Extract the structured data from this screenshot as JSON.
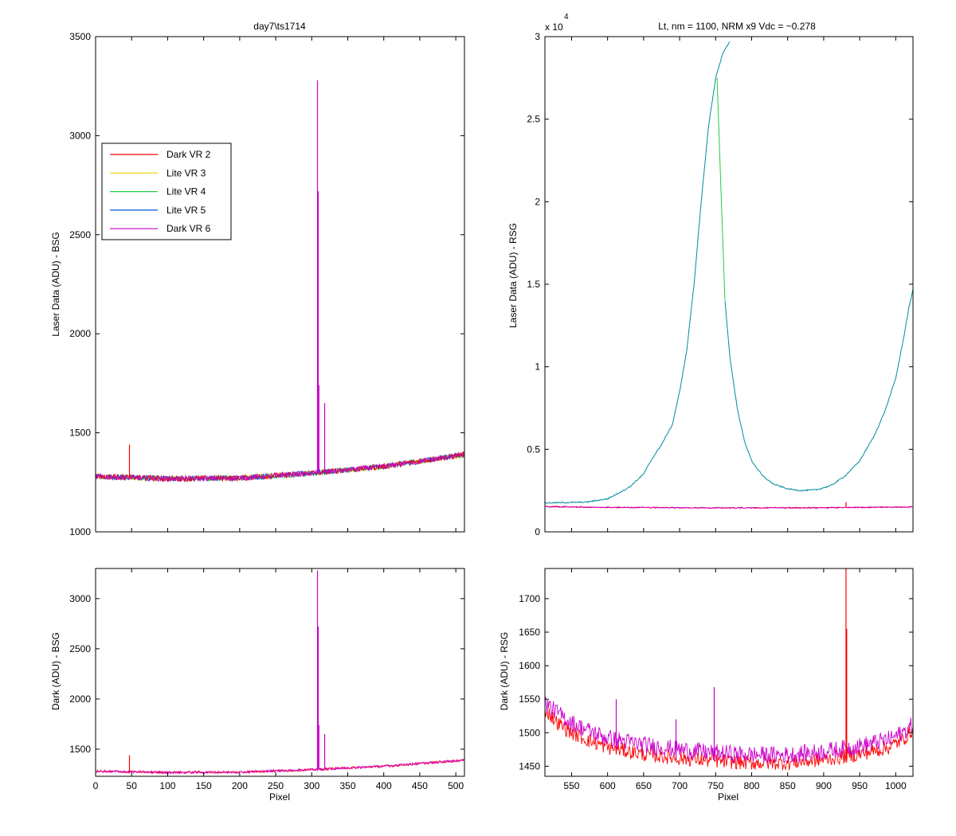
{
  "figure": {
    "background": "#ffffff",
    "series_colors": {
      "Dark VR 2": "#ff0000",
      "Lite VR 3": "#e6d200",
      "Lite VR 4": "#22cc44",
      "Lite VR 5": "#0055dd",
      "Dark VR 6": "#cc00cc"
    },
    "overlap_color": "#008c9e"
  },
  "chart_data": [
    {
      "type": "line",
      "panel": "top-left",
      "title": "day7\\ts1714",
      "xlabel": "",
      "ylabel": "Laser Data (ADU) - BSG",
      "xlim": [
        0,
        512
      ],
      "ylim": [
        1000,
        3500
      ],
      "yticks": [
        1000,
        1500,
        2000,
        2500,
        3000,
        3500
      ],
      "xticks": [
        0,
        50,
        100,
        150,
        200,
        250,
        300,
        350,
        400,
        450,
        500
      ],
      "x_tick_labels_shown": false,
      "legend": {
        "position": "upper-left",
        "entries": [
          "Dark VR 2",
          "Lite VR 3",
          "Lite VR 4",
          "Lite VR 5",
          "Dark VR 6"
        ]
      },
      "baseline": [
        [
          0,
          1280
        ],
        [
          100,
          1268
        ],
        [
          200,
          1272
        ],
        [
          300,
          1296
        ],
        [
          400,
          1330
        ],
        [
          512,
          1390
        ]
      ],
      "spikes": [
        {
          "series": "Dark VR 2",
          "x": 47,
          "y": 1440
        },
        {
          "series": "Dark VR 6",
          "x": 308,
          "y": 3280
        },
        {
          "series": "Dark VR 6",
          "x": 309,
          "y": 2720
        },
        {
          "series": "Dark VR 6",
          "x": 310,
          "y": 1740
        },
        {
          "series": "Dark VR 6",
          "x": 318,
          "y": 1650
        }
      ],
      "series": [
        {
          "name": "Dark VR 2"
        },
        {
          "name": "Lite VR 3"
        },
        {
          "name": "Lite VR 4"
        },
        {
          "name": "Lite VR 5"
        },
        {
          "name": "Dark VR 6"
        }
      ]
    },
    {
      "type": "line",
      "panel": "top-right",
      "title": "Lt, nm = 1100, NRM x9 Vdc = ~0.278",
      "xlabel": "",
      "ylabel": "Laser Data (ADU) - RSG",
      "xlim": [
        513,
        1024
      ],
      "ylim": [
        0,
        30000
      ],
      "yticks": [
        0,
        5000,
        10000,
        15000,
        20000,
        25000,
        30000
      ],
      "ytick_labels": [
        "0",
        "0.5",
        "1",
        "1.5",
        "2",
        "2.5",
        "3"
      ],
      "y_multiplier_label": "x 10",
      "y_multiplier_exponent": "4",
      "xticks": [
        550,
        600,
        650,
        700,
        750,
        800,
        850,
        900,
        950,
        1000
      ],
      "x_tick_labels_shown": false,
      "lite_curve": [
        [
          513,
          1750
        ],
        [
          570,
          1800
        ],
        [
          600,
          2000
        ],
        [
          630,
          2700
        ],
        [
          650,
          3500
        ],
        [
          660,
          4300
        ],
        [
          675,
          5300
        ],
        [
          690,
          6500
        ],
        [
          700,
          8500
        ],
        [
          710,
          11000
        ],
        [
          720,
          15000
        ],
        [
          730,
          20000
        ],
        [
          740,
          24500
        ],
        [
          750,
          27500
        ],
        [
          760,
          29000
        ],
        [
          770,
          29700
        ]
      ],
      "lite4_falling": [
        [
          752,
          27500
        ],
        [
          758,
          20000
        ],
        [
          763,
          14000
        ]
      ],
      "lite_curve_falling": [
        [
          763,
          14000
        ],
        [
          770,
          10500
        ],
        [
          780,
          7500
        ],
        [
          790,
          5500
        ],
        [
          800,
          4300
        ],
        [
          815,
          3400
        ],
        [
          830,
          2900
        ],
        [
          850,
          2600
        ],
        [
          870,
          2500
        ],
        [
          890,
          2550
        ],
        [
          910,
          2800
        ],
        [
          930,
          3400
        ],
        [
          950,
          4300
        ],
        [
          970,
          5800
        ],
        [
          985,
          7300
        ],
        [
          1000,
          9300
        ],
        [
          1010,
          11500
        ],
        [
          1018,
          13500
        ],
        [
          1024,
          14700
        ]
      ],
      "dark_baseline": [
        [
          513,
          1530
        ],
        [
          600,
          1480
        ],
        [
          700,
          1460
        ],
        [
          800,
          1450
        ],
        [
          900,
          1460
        ],
        [
          1024,
          1510
        ]
      ],
      "spikes": [
        {
          "series": "Dark VR 2",
          "x": 931,
          "y": 1800
        }
      ]
    },
    {
      "type": "line",
      "panel": "bottom-left",
      "title": "",
      "xlabel": "Pixel",
      "ylabel": "Dark (ADU) - BSG",
      "xlim": [
        0,
        512
      ],
      "ylim": [
        1230,
        3300
      ],
      "yticks": [
        1500,
        2000,
        2500,
        3000
      ],
      "xticks": [
        0,
        50,
        100,
        150,
        200,
        250,
        300,
        350,
        400,
        450,
        500
      ],
      "baseline": [
        [
          0,
          1280
        ],
        [
          100,
          1268
        ],
        [
          200,
          1272
        ],
        [
          300,
          1296
        ],
        [
          400,
          1330
        ],
        [
          512,
          1390
        ]
      ],
      "spikes": [
        {
          "series": "Dark VR 2",
          "x": 47,
          "y": 1440
        },
        {
          "series": "Dark VR 6",
          "x": 308,
          "y": 3280
        },
        {
          "series": "Dark VR 6",
          "x": 309,
          "y": 2720
        },
        {
          "series": "Dark VR 6",
          "x": 310,
          "y": 1740
        },
        {
          "series": "Dark VR 6",
          "x": 318,
          "y": 1650
        }
      ]
    },
    {
      "type": "line",
      "panel": "bottom-right",
      "title": "",
      "xlabel": "Pixel",
      "ylabel": "Dark (ADU) - RSG",
      "xlim": [
        513,
        1024
      ],
      "ylim": [
        1435,
        1745
      ],
      "yticks": [
        1450,
        1500,
        1550,
        1600,
        1650,
        1700
      ],
      "xticks": [
        550,
        600,
        650,
        700,
        750,
        800,
        850,
        900,
        950,
        1000
      ],
      "red_baseline": [
        [
          513,
          1535
        ],
        [
          530,
          1515
        ],
        [
          550,
          1500
        ],
        [
          570,
          1490
        ],
        [
          600,
          1478
        ],
        [
          650,
          1468
        ],
        [
          700,
          1462
        ],
        [
          750,
          1458
        ],
        [
          800,
          1455
        ],
        [
          850,
          1455
        ],
        [
          900,
          1460
        ],
        [
          950,
          1468
        ],
        [
          990,
          1478
        ],
        [
          1010,
          1490
        ],
        [
          1024,
          1505
        ]
      ],
      "magenta_baseline": [
        [
          513,
          1545
        ],
        [
          530,
          1530
        ],
        [
          550,
          1515
        ],
        [
          570,
          1505
        ],
        [
          600,
          1492
        ],
        [
          650,
          1482
        ],
        [
          700,
          1475
        ],
        [
          750,
          1470
        ],
        [
          800,
          1467
        ],
        [
          850,
          1467
        ],
        [
          900,
          1472
        ],
        [
          950,
          1480
        ],
        [
          990,
          1490
        ],
        [
          1010,
          1500
        ],
        [
          1024,
          1512
        ]
      ],
      "spikes": [
        {
          "series": "Dark VR 2",
          "x": 931,
          "y": 1745
        },
        {
          "series": "Dark VR 2",
          "x": 932,
          "y": 1655
        },
        {
          "series": "Dark VR 6",
          "x": 748,
          "y": 1568
        },
        {
          "series": "Dark VR 6",
          "x": 695,
          "y": 1520
        },
        {
          "series": "Dark VR 6",
          "x": 612,
          "y": 1550
        }
      ]
    }
  ]
}
